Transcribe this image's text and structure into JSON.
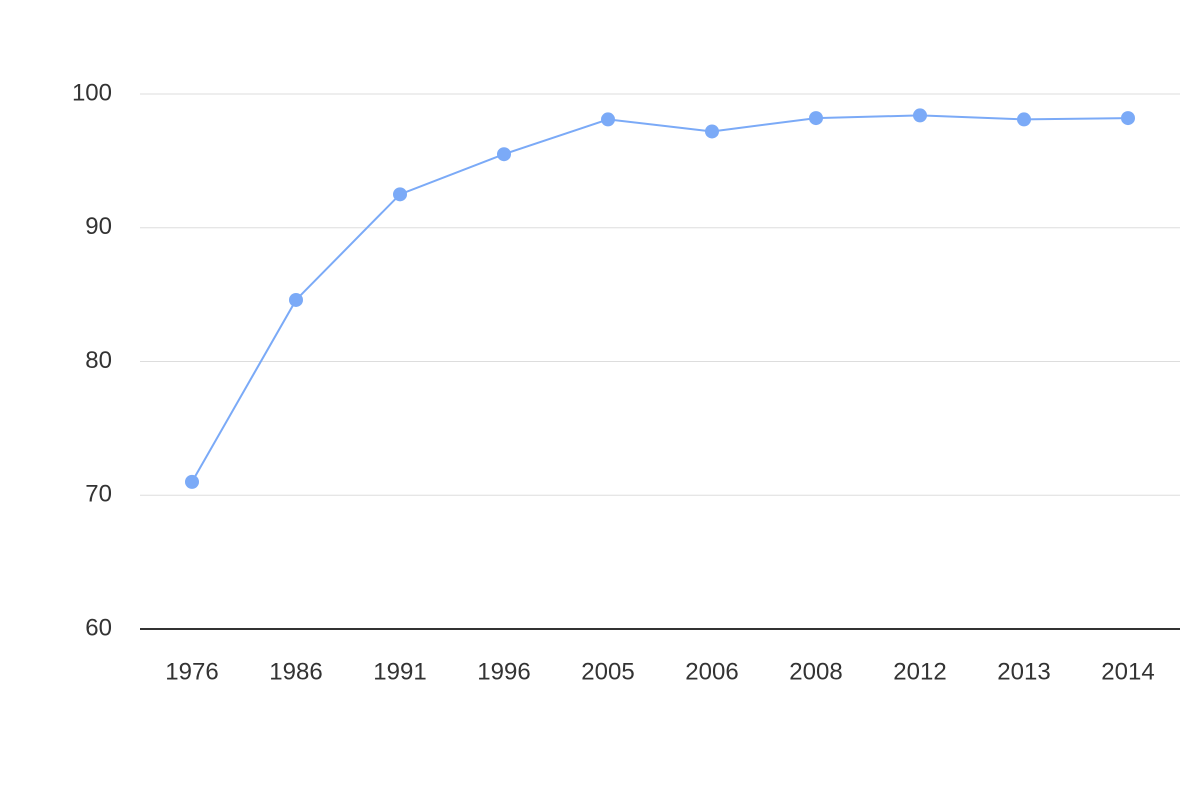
{
  "chart_data": {
    "type": "line",
    "categories": [
      "1976",
      "1986",
      "1991",
      "1996",
      "2005",
      "2006",
      "2008",
      "2012",
      "2013",
      "2014"
    ],
    "values": [
      71.0,
      84.6,
      92.5,
      95.5,
      98.1,
      97.2,
      98.2,
      98.4,
      98.1,
      98.2
    ],
    "color": "#7baaf7",
    "ylim": [
      60,
      100
    ],
    "yticks": [
      60,
      70,
      80,
      90,
      100
    ],
    "grid": true
  }
}
